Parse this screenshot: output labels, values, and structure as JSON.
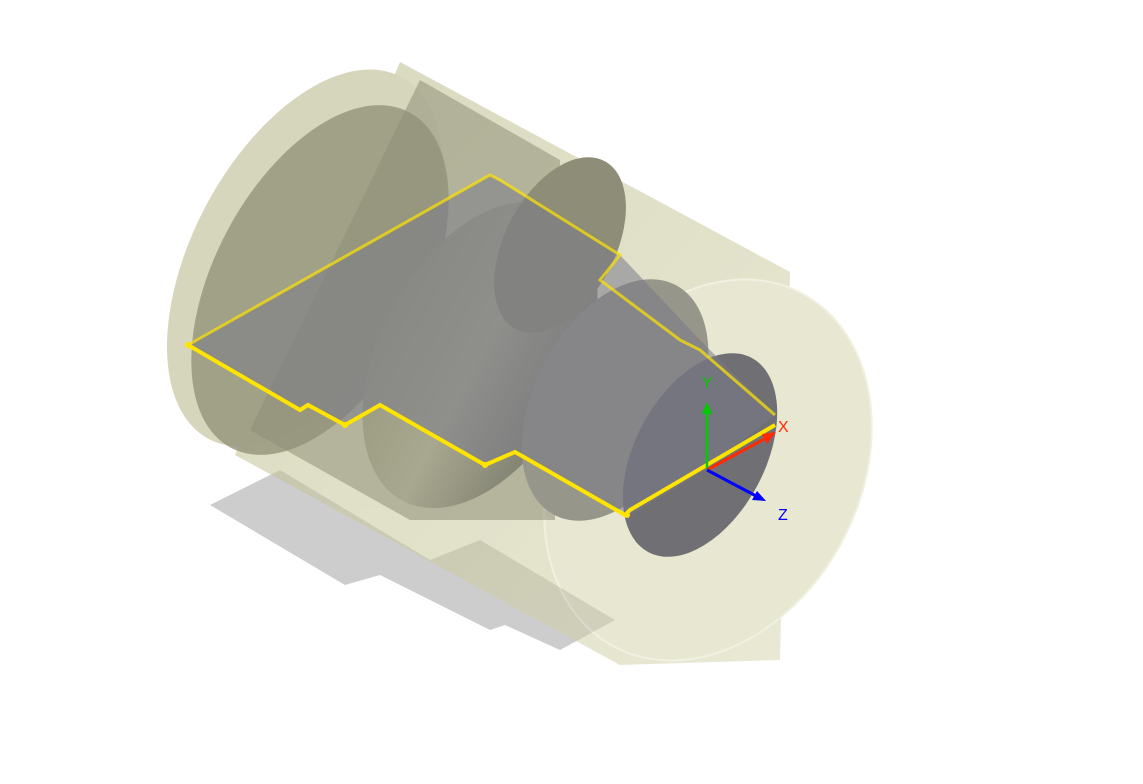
{
  "viewport": {
    "background": "#ffffff",
    "stock_color": "#c9c99a",
    "part_color": "#8c8c78",
    "section_color": "#7a7a82",
    "profile_color": "#ffe400",
    "shadow_color": "#c8c8c8"
  },
  "triad": {
    "x": {
      "label": "X",
      "color": "#ff2a00"
    },
    "y": {
      "label": "Y",
      "color": "#00cc00"
    },
    "z": {
      "label": "Z",
      "color": "#0000ff"
    }
  }
}
